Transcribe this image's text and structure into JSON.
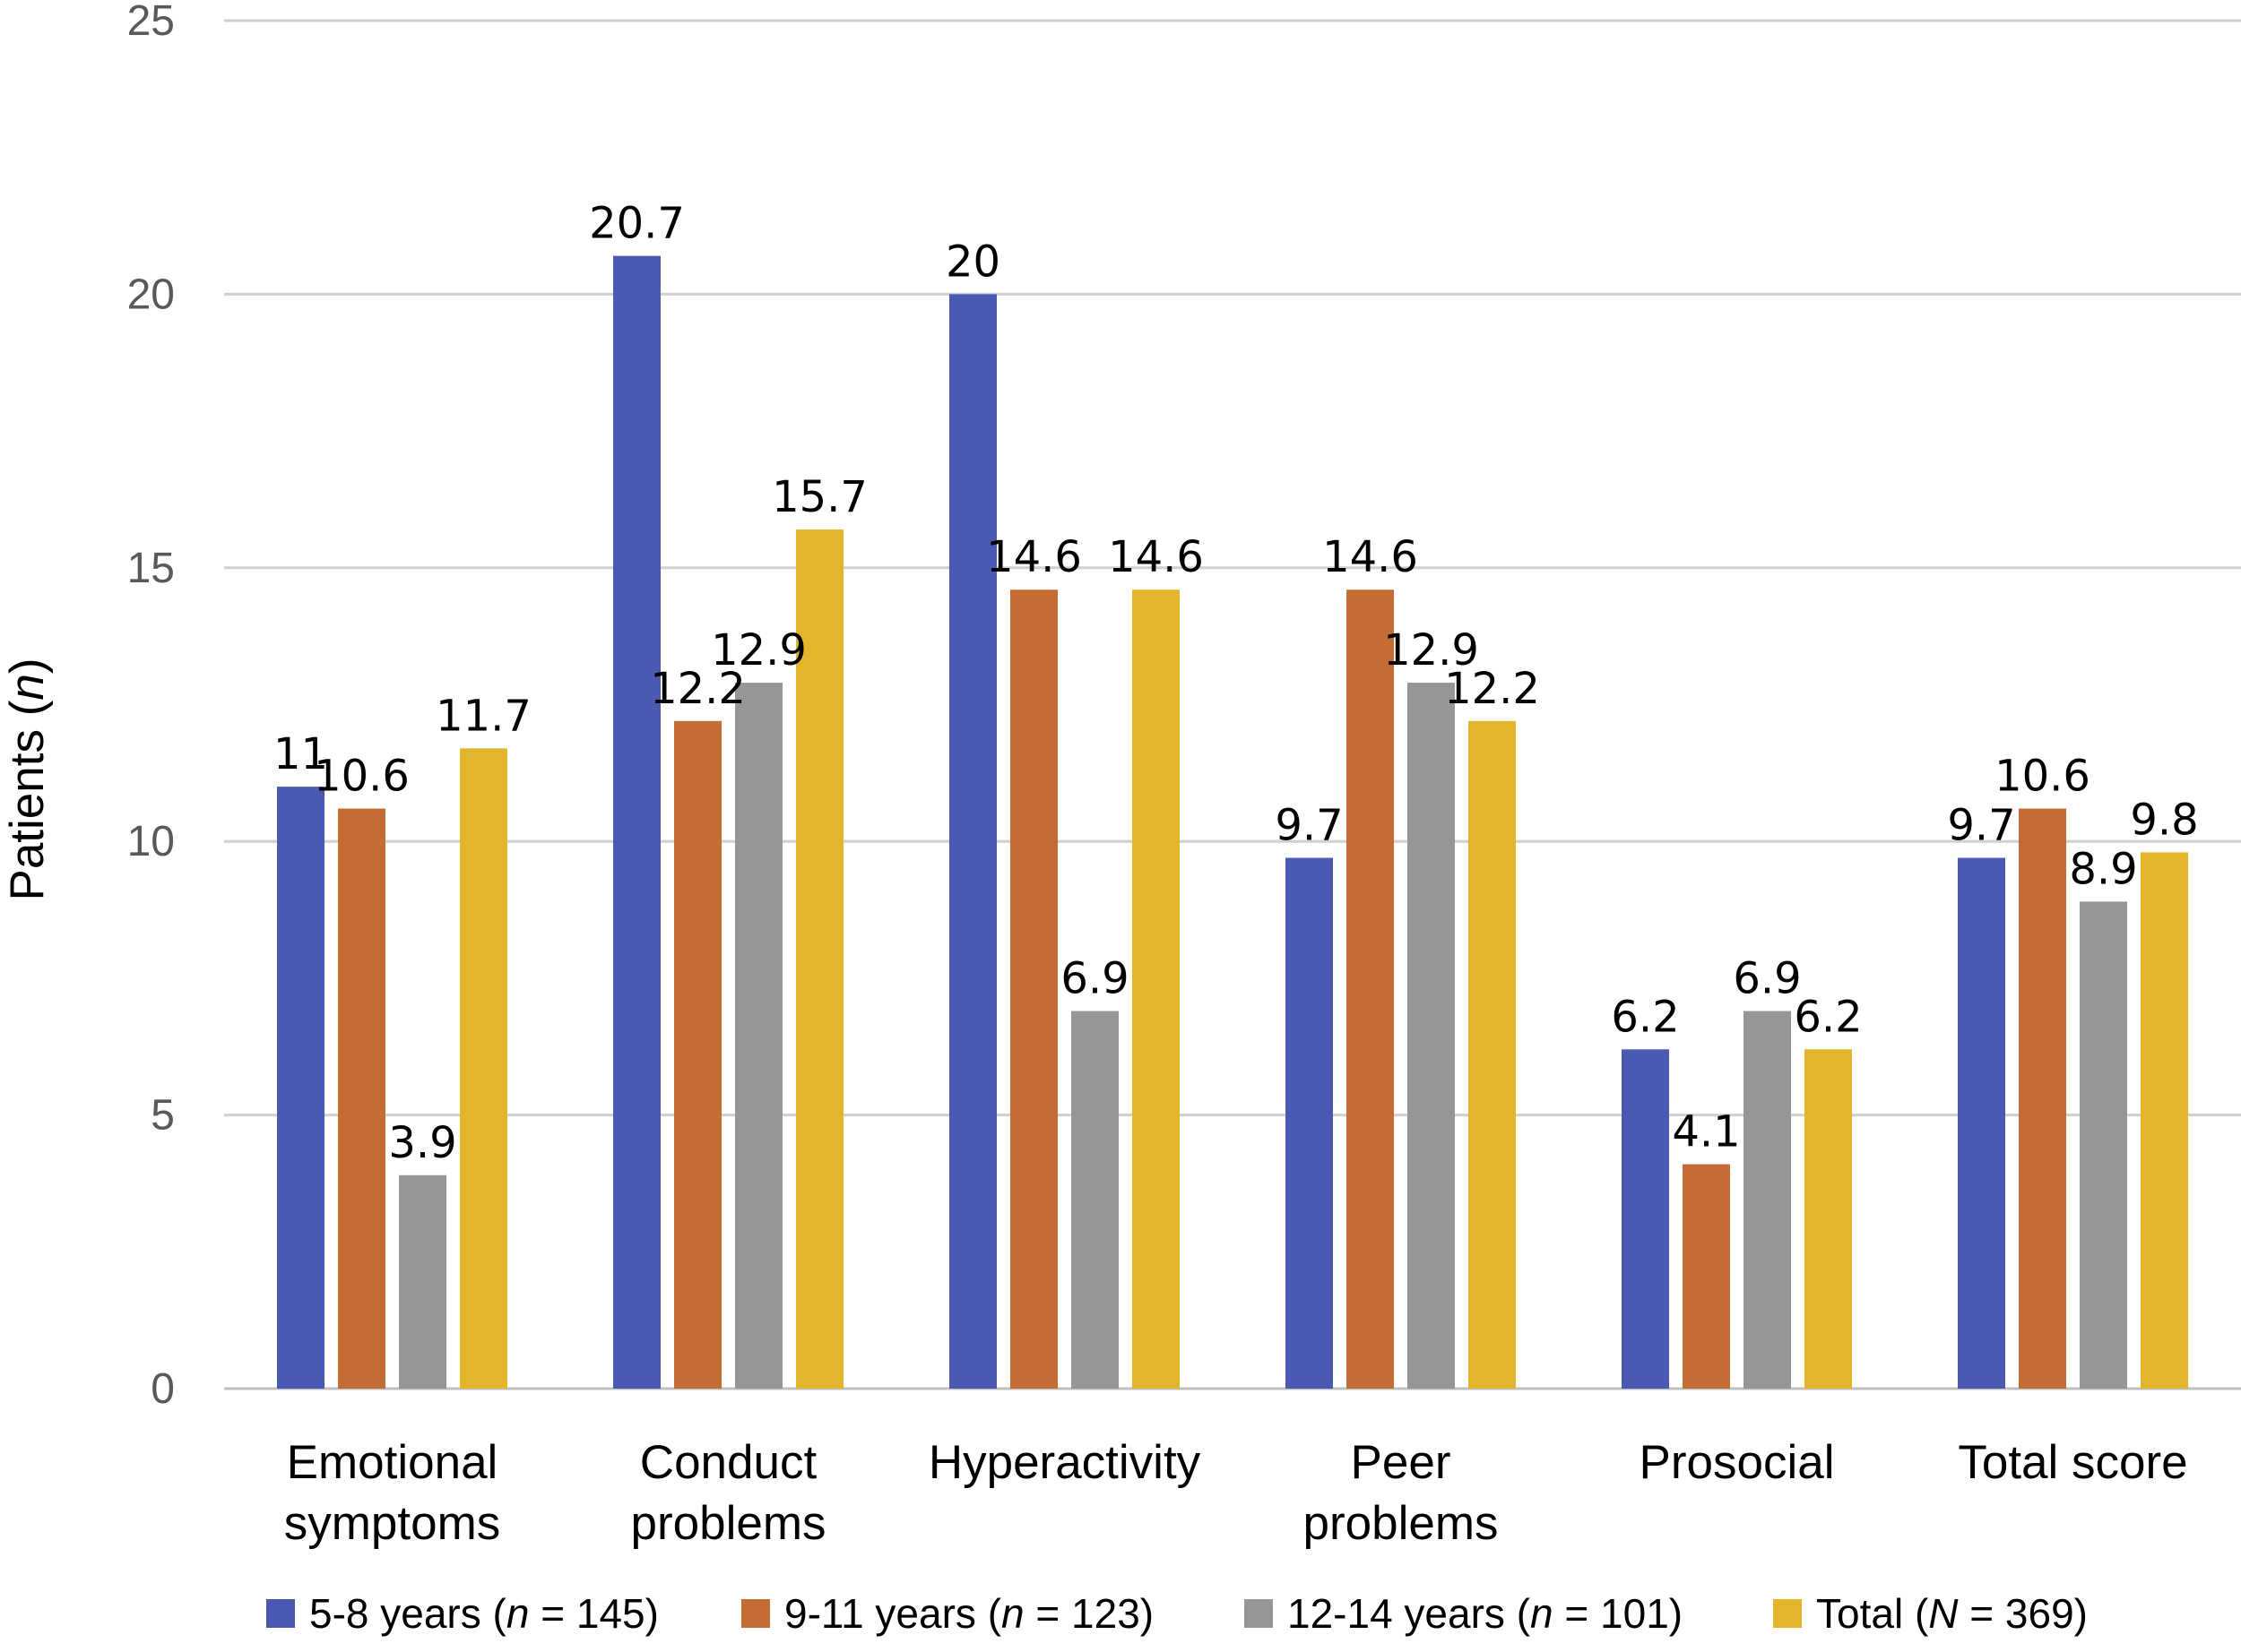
{
  "chart_data": {
    "type": "bar",
    "title": "",
    "xlabel": "",
    "ylabel": "Patients (",
    "ylabel_italic": "n",
    "ylabel_suffix": ")",
    "ylim": [
      0,
      25
    ],
    "yticks": [
      0,
      5,
      10,
      15,
      20,
      25
    ],
    "grid": true,
    "legend_position": "bottom",
    "categories": [
      [
        "Emotional",
        "symptoms"
      ],
      [
        "Conduct",
        "problems"
      ],
      [
        "Hyperactivity"
      ],
      [
        "Peer",
        "problems"
      ],
      [
        "Prosocial"
      ],
      [
        "Total score"
      ]
    ],
    "series": [
      {
        "name": "5-8 years",
        "legend_prefix": "5-8 years (",
        "legend_italic": "n",
        "legend_suffix": " = 145)",
        "color": "#4A5AB3",
        "values": [
          11,
          20.7,
          20,
          9.7,
          6.2,
          9.7
        ],
        "labels": [
          "11",
          "20.7",
          "20",
          "9.7",
          "6.2",
          "9.7"
        ]
      },
      {
        "name": "9-11 years",
        "legend_prefix": "9-11 years (",
        "legend_italic": "n",
        "legend_suffix": " = 123)",
        "color": "#C46C33",
        "values": [
          10.6,
          12.2,
          14.6,
          14.6,
          4.1,
          10.6
        ],
        "labels": [
          "10.6",
          "12.2",
          "14.6",
          "14.6",
          "4.1",
          "10.6"
        ]
      },
      {
        "name": "12-14 years",
        "legend_prefix": "12-14 years (",
        "legend_italic": "n",
        "legend_suffix": " = 101)",
        "color": "#969696",
        "values": [
          3.9,
          12.9,
          6.9,
          12.9,
          6.9,
          8.9
        ],
        "labels": [
          "3.9",
          "12.9",
          "6.9",
          "12.9",
          "6.9",
          "8.9"
        ]
      },
      {
        "name": "Total",
        "legend_prefix": "Total (",
        "legend_italic": "N",
        "legend_suffix": " = 369)",
        "color": "#E2B52B",
        "values": [
          11.7,
          15.7,
          14.6,
          12.2,
          6.2,
          9.8
        ],
        "labels": [
          "11.7",
          "15.7",
          "14.6",
          "12.2",
          "6.2",
          "9.8"
        ]
      }
    ]
  }
}
